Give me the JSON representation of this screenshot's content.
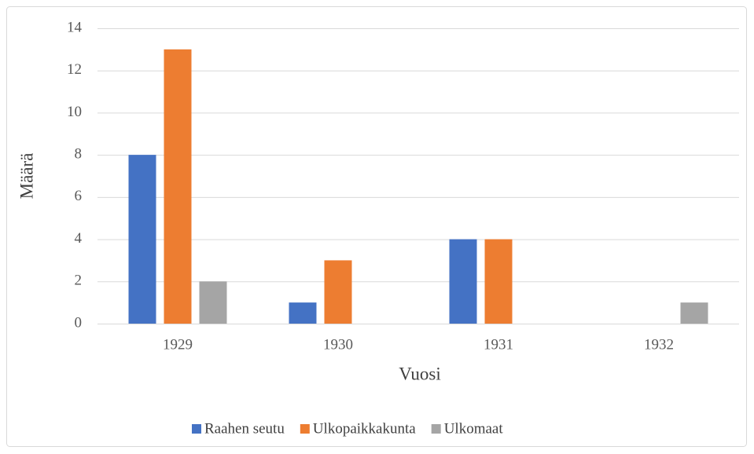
{
  "chart_data": {
    "type": "bar",
    "categories": [
      "1929",
      "1930",
      "1931",
      "1932"
    ],
    "series": [
      {
        "name": "Raahen seutu",
        "color": "#4472c4",
        "values": [
          8,
          1,
          4,
          0
        ]
      },
      {
        "name": "Ulkopaikkakunta",
        "color": "#ed7d31",
        "values": [
          13,
          3,
          4,
          0
        ]
      },
      {
        "name": "Ulkomaat",
        "color": "#a5a5a5",
        "values": [
          2,
          0,
          0,
          1
        ]
      }
    ],
    "xlabel": "Vuosi",
    "ylabel": "Määrä",
    "ylim": [
      0,
      14
    ],
    "yticks": [
      0,
      2,
      4,
      6,
      8,
      10,
      12,
      14
    ],
    "grid": true,
    "legend": "bottom"
  }
}
